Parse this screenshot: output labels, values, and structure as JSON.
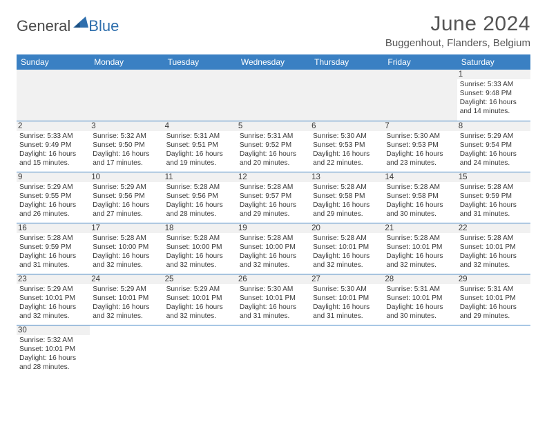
{
  "logo": {
    "word1": "General",
    "word2": "Blue",
    "shape_color": "#2f6fad"
  },
  "title": "June 2024",
  "location": "Buggenhout, Flanders, Belgium",
  "colors": {
    "header_bg": "#3a80c3",
    "header_fg": "#ffffff",
    "grey_bg": "#f1f1f1"
  },
  "weekdays": [
    "Sunday",
    "Monday",
    "Tuesday",
    "Wednesday",
    "Thursday",
    "Friday",
    "Saturday"
  ],
  "first_weekday_index": 6,
  "days": [
    {
      "n": 1,
      "sr": "5:33 AM",
      "ss": "9:48 PM",
      "dl": "16 hours and 14 minutes."
    },
    {
      "n": 2,
      "sr": "5:33 AM",
      "ss": "9:49 PM",
      "dl": "16 hours and 15 minutes."
    },
    {
      "n": 3,
      "sr": "5:32 AM",
      "ss": "9:50 PM",
      "dl": "16 hours and 17 minutes."
    },
    {
      "n": 4,
      "sr": "5:31 AM",
      "ss": "9:51 PM",
      "dl": "16 hours and 19 minutes."
    },
    {
      "n": 5,
      "sr": "5:31 AM",
      "ss": "9:52 PM",
      "dl": "16 hours and 20 minutes."
    },
    {
      "n": 6,
      "sr": "5:30 AM",
      "ss": "9:53 PM",
      "dl": "16 hours and 22 minutes."
    },
    {
      "n": 7,
      "sr": "5:30 AM",
      "ss": "9:53 PM",
      "dl": "16 hours and 23 minutes."
    },
    {
      "n": 8,
      "sr": "5:29 AM",
      "ss": "9:54 PM",
      "dl": "16 hours and 24 minutes."
    },
    {
      "n": 9,
      "sr": "5:29 AM",
      "ss": "9:55 PM",
      "dl": "16 hours and 26 minutes."
    },
    {
      "n": 10,
      "sr": "5:29 AM",
      "ss": "9:56 PM",
      "dl": "16 hours and 27 minutes."
    },
    {
      "n": 11,
      "sr": "5:28 AM",
      "ss": "9:56 PM",
      "dl": "16 hours and 28 minutes."
    },
    {
      "n": 12,
      "sr": "5:28 AM",
      "ss": "9:57 PM",
      "dl": "16 hours and 29 minutes."
    },
    {
      "n": 13,
      "sr": "5:28 AM",
      "ss": "9:58 PM",
      "dl": "16 hours and 29 minutes."
    },
    {
      "n": 14,
      "sr": "5:28 AM",
      "ss": "9:58 PM",
      "dl": "16 hours and 30 minutes."
    },
    {
      "n": 15,
      "sr": "5:28 AM",
      "ss": "9:59 PM",
      "dl": "16 hours and 31 minutes."
    },
    {
      "n": 16,
      "sr": "5:28 AM",
      "ss": "9:59 PM",
      "dl": "16 hours and 31 minutes."
    },
    {
      "n": 17,
      "sr": "5:28 AM",
      "ss": "10:00 PM",
      "dl": "16 hours and 32 minutes."
    },
    {
      "n": 18,
      "sr": "5:28 AM",
      "ss": "10:00 PM",
      "dl": "16 hours and 32 minutes."
    },
    {
      "n": 19,
      "sr": "5:28 AM",
      "ss": "10:00 PM",
      "dl": "16 hours and 32 minutes."
    },
    {
      "n": 20,
      "sr": "5:28 AM",
      "ss": "10:01 PM",
      "dl": "16 hours and 32 minutes."
    },
    {
      "n": 21,
      "sr": "5:28 AM",
      "ss": "10:01 PM",
      "dl": "16 hours and 32 minutes."
    },
    {
      "n": 22,
      "sr": "5:28 AM",
      "ss": "10:01 PM",
      "dl": "16 hours and 32 minutes."
    },
    {
      "n": 23,
      "sr": "5:29 AM",
      "ss": "10:01 PM",
      "dl": "16 hours and 32 minutes."
    },
    {
      "n": 24,
      "sr": "5:29 AM",
      "ss": "10:01 PM",
      "dl": "16 hours and 32 minutes."
    },
    {
      "n": 25,
      "sr": "5:29 AM",
      "ss": "10:01 PM",
      "dl": "16 hours and 32 minutes."
    },
    {
      "n": 26,
      "sr": "5:30 AM",
      "ss": "10:01 PM",
      "dl": "16 hours and 31 minutes."
    },
    {
      "n": 27,
      "sr": "5:30 AM",
      "ss": "10:01 PM",
      "dl": "16 hours and 31 minutes."
    },
    {
      "n": 28,
      "sr": "5:31 AM",
      "ss": "10:01 PM",
      "dl": "16 hours and 30 minutes."
    },
    {
      "n": 29,
      "sr": "5:31 AM",
      "ss": "10:01 PM",
      "dl": "16 hours and 29 minutes."
    },
    {
      "n": 30,
      "sr": "5:32 AM",
      "ss": "10:01 PM",
      "dl": "16 hours and 28 minutes."
    }
  ],
  "labels": {
    "sunrise": "Sunrise:",
    "sunset": "Sunset:",
    "daylight": "Daylight:"
  }
}
